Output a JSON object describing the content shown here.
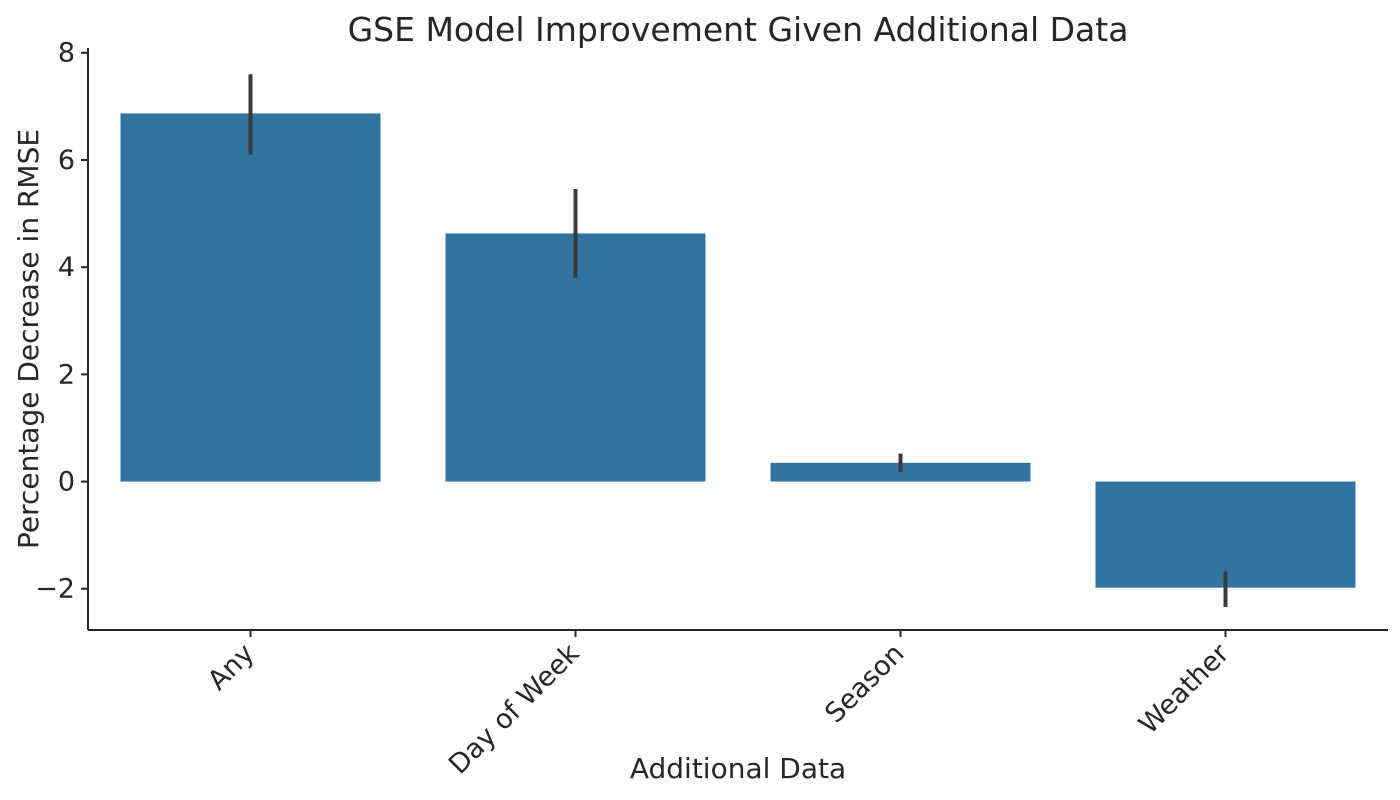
{
  "chart_data": {
    "type": "bar",
    "title": "GSE Model Improvement Given Additional Data",
    "xlabel": "Additional Data",
    "ylabel": "Percentage Decrease in RMSE",
    "categories": [
      "Any",
      "Day of Week",
      "Season",
      "Weather"
    ],
    "values": [
      6.87,
      4.63,
      0.35,
      -1.98
    ],
    "error_bars": [
      {
        "low": 6.1,
        "high": 7.6
      },
      {
        "low": 3.8,
        "high": 5.46
      },
      {
        "low": 0.18,
        "high": 0.52
      },
      {
        "low": -2.34,
        "high": -1.68
      }
    ],
    "yticks": [
      8,
      6,
      4,
      2,
      0,
      -2
    ],
    "ylim": [
      -2.77,
      8.09
    ],
    "grid": false,
    "legend": null,
    "bar_color": "#3274a1",
    "error_bar_color": "#3a3a3a",
    "axis_color": "#262626",
    "background_color": "#ffffff"
  }
}
